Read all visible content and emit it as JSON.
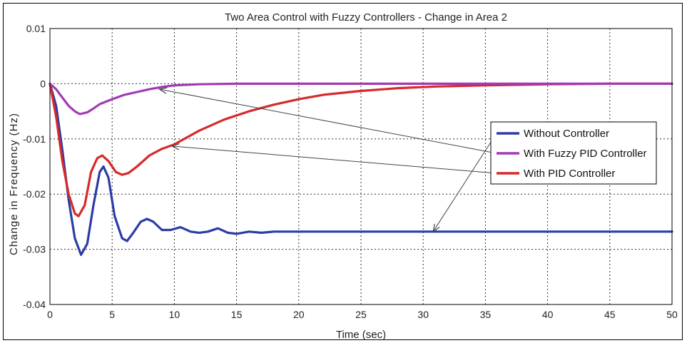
{
  "chart_data": {
    "type": "line",
    "title": "Two Area Control with Fuzzy Controllers - Change in Area 2",
    "xlabel": "Time (sec)",
    "ylabel": "Change in Frequency (Hz)",
    "xlim": [
      0,
      50
    ],
    "ylim": [
      -0.04,
      0.01
    ],
    "xticks": [
      0,
      5,
      10,
      15,
      20,
      25,
      30,
      35,
      40,
      45,
      50
    ],
    "yticks": [
      0.01,
      0,
      -0.01,
      -0.02,
      -0.03,
      -0.04
    ],
    "ytick_labels": [
      "0.01",
      "0",
      "-0.01",
      "-0.02",
      "-0.03",
      "-0.04"
    ],
    "grid": true,
    "legend_position": "right",
    "series": [
      {
        "name": "Without Controller",
        "color": "#2b3ca6",
        "points": [
          [
            0,
            0
          ],
          [
            0.5,
            -0.004
          ],
          [
            1,
            -0.012
          ],
          [
            1.5,
            -0.021
          ],
          [
            2,
            -0.028
          ],
          [
            2.5,
            -0.031
          ],
          [
            3,
            -0.029
          ],
          [
            3.5,
            -0.022
          ],
          [
            4,
            -0.016
          ],
          [
            4.3,
            -0.015
          ],
          [
            4.7,
            -0.017
          ],
          [
            5.2,
            -0.024
          ],
          [
            5.8,
            -0.028
          ],
          [
            6.2,
            -0.0285
          ],
          [
            6.7,
            -0.027
          ],
          [
            7.3,
            -0.025
          ],
          [
            7.8,
            -0.0245
          ],
          [
            8.3,
            -0.025
          ],
          [
            9,
            -0.0265
          ],
          [
            9.7,
            -0.0265
          ],
          [
            10.5,
            -0.026
          ],
          [
            11.3,
            -0.0268
          ],
          [
            12,
            -0.027
          ],
          [
            12.7,
            -0.0268
          ],
          [
            13.5,
            -0.0262
          ],
          [
            14.3,
            -0.027
          ],
          [
            15,
            -0.0272
          ],
          [
            16,
            -0.0268
          ],
          [
            17,
            -0.027
          ],
          [
            18,
            -0.0268
          ],
          [
            20,
            -0.0268
          ],
          [
            25,
            -0.0268
          ],
          [
            30,
            -0.0268
          ],
          [
            35,
            -0.0268
          ],
          [
            40,
            -0.0268
          ],
          [
            45,
            -0.0268
          ],
          [
            50,
            -0.0268
          ]
        ]
      },
      {
        "name": "With Fuzzy PID Controller",
        "color": "#a33ab5",
        "points": [
          [
            0,
            0
          ],
          [
            0.5,
            -0.001
          ],
          [
            1,
            -0.0025
          ],
          [
            1.5,
            -0.004
          ],
          [
            2,
            -0.005
          ],
          [
            2.4,
            -0.0055
          ],
          [
            3,
            -0.0052
          ],
          [
            3.5,
            -0.0045
          ],
          [
            4,
            -0.0037
          ],
          [
            5,
            -0.0028
          ],
          [
            6,
            -0.002
          ],
          [
            7,
            -0.0015
          ],
          [
            8,
            -0.001
          ],
          [
            9,
            -0.0006
          ],
          [
            10,
            -0.0003
          ],
          [
            12,
            -0.0001
          ],
          [
            15,
            0
          ],
          [
            20,
            0
          ],
          [
            30,
            0
          ],
          [
            40,
            0
          ],
          [
            50,
            0
          ]
        ]
      },
      {
        "name": "With PID Controller",
        "color": "#d62a2a",
        "points": [
          [
            0,
            0
          ],
          [
            0.5,
            -0.006
          ],
          [
            1,
            -0.014
          ],
          [
            1.5,
            -0.02
          ],
          [
            2,
            -0.0235
          ],
          [
            2.3,
            -0.024
          ],
          [
            2.8,
            -0.022
          ],
          [
            3.3,
            -0.016
          ],
          [
            3.8,
            -0.0135
          ],
          [
            4.2,
            -0.013
          ],
          [
            4.7,
            -0.014
          ],
          [
            5.3,
            -0.016
          ],
          [
            5.8,
            -0.0165
          ],
          [
            6.3,
            -0.0162
          ],
          [
            7,
            -0.015
          ],
          [
            8,
            -0.013
          ],
          [
            9,
            -0.0118
          ],
          [
            10,
            -0.011
          ],
          [
            12,
            -0.0085
          ],
          [
            14,
            -0.0065
          ],
          [
            16,
            -0.005
          ],
          [
            18,
            -0.0038
          ],
          [
            20,
            -0.0028
          ],
          [
            22,
            -0.002
          ],
          [
            25,
            -0.0013
          ],
          [
            28,
            -0.0008
          ],
          [
            31,
            -0.0005
          ],
          [
            35,
            -0.0003
          ],
          [
            40,
            -0.0001
          ],
          [
            45,
            0
          ],
          [
            50,
            0
          ]
        ]
      }
    ],
    "annotations": [
      {
        "from_series": "Without Controller",
        "tip": [
          30.8,
          -0.0268
        ]
      },
      {
        "from_series": "With Fuzzy PID Controller",
        "tip": [
          8.8,
          -0.001
        ]
      },
      {
        "from_series": "With PID Controller",
        "tip": [
          9.8,
          -0.0113
        ]
      }
    ]
  }
}
